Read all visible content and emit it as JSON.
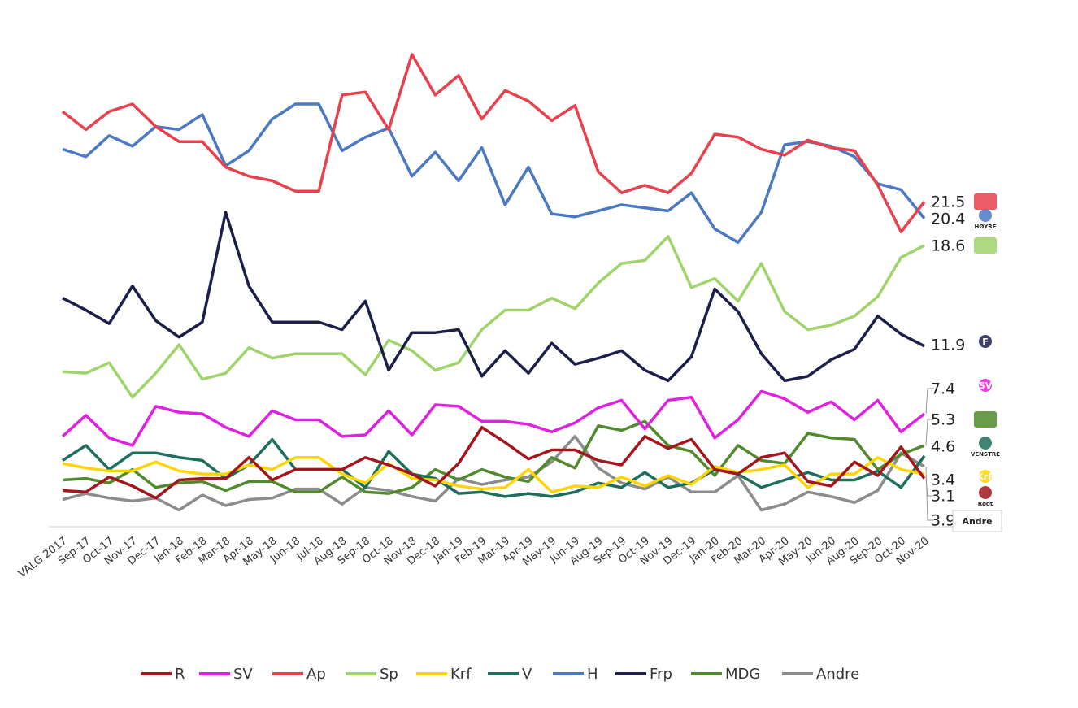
{
  "chart_data": {
    "type": "line",
    "categories": [
      "VALG 2017",
      "Sep-17",
      "Oct-17",
      "Nov-17",
      "Dec-17",
      "Jan-18",
      "Feb-18",
      "Mar-18",
      "Apr-18",
      "May-18",
      "Jun-18",
      "Jul-18",
      "Aug-18",
      "Sep-18",
      "Oct-18",
      "Nov-18",
      "Dec-18",
      "Jan-19",
      "Feb-19",
      "Mar-19",
      "Apr-19",
      "May-19",
      "Jun-19",
      "Aug-19",
      "Sep-19",
      "Oct-19",
      "Nov-19",
      "Dec-19",
      "Jan-20",
      "Feb-20",
      "Mar-20",
      "Apr-20",
      "May-20",
      "Jun-20",
      "Aug-20",
      "Sep-20",
      "Oct-20",
      "Nov-20"
    ],
    "ylim": [
      0,
      34
    ],
    "series": [
      {
        "name": "R",
        "color": "#a3161c",
        "logo": "Rødt",
        "values": [
          2.3,
          2.2,
          3.2,
          2.6,
          1.8,
          3.0,
          3.1,
          3.1,
          4.5,
          3.0,
          3.7,
          3.7,
          3.7,
          4.5,
          4.0,
          3.4,
          2.6,
          4.1,
          6.5,
          5.5,
          4.4,
          5.0,
          5.0,
          4.3,
          4.0,
          5.9,
          5.1,
          5.7,
          3.7,
          3.4,
          4.5,
          4.8,
          2.9,
          2.6,
          4.2,
          3.3,
          5.2,
          3.1
        ]
      },
      {
        "name": "SV",
        "color": "#e020e0",
        "logo": "SV",
        "values": [
          5.9,
          7.3,
          5.8,
          5.3,
          7.9,
          7.5,
          7.4,
          6.5,
          5.9,
          7.6,
          7.0,
          7.0,
          5.9,
          6.0,
          7.6,
          6.0,
          8.0,
          7.9,
          6.9,
          6.9,
          6.7,
          6.2,
          6.8,
          7.8,
          8.3,
          6.4,
          8.3,
          8.5,
          5.8,
          7.0,
          8.9,
          8.4,
          7.5,
          8.2,
          7.0,
          8.3,
          6.2,
          7.4
        ]
      },
      {
        "name": "Ap",
        "color": "#e8404c",
        "values": [
          27.5,
          26.3,
          27.5,
          28.0,
          26.5,
          25.5,
          25.5,
          23.8,
          23.2,
          22.9,
          22.2,
          22.2,
          28.6,
          28.8,
          26.3,
          31.3,
          28.6,
          29.9,
          27.0,
          28.9,
          28.2,
          26.9,
          27.9,
          23.5,
          22.1,
          22.6,
          22.1,
          23.4,
          26.0,
          25.8,
          25.0,
          24.6,
          25.6,
          25.1,
          24.9,
          22.6,
          19.5,
          21.5
        ]
      },
      {
        "name": "Sp",
        "color": "#9fd46b",
        "values": [
          10.2,
          10.1,
          10.8,
          8.5,
          10.1,
          12.0,
          9.7,
          10.1,
          11.8,
          11.1,
          11.4,
          11.4,
          11.4,
          10.0,
          12.3,
          11.6,
          10.3,
          10.8,
          13.0,
          14.3,
          14.3,
          15.1,
          14.4,
          16.1,
          17.4,
          17.6,
          19.2,
          15.8,
          16.4,
          14.9,
          17.4,
          14.2,
          13.0,
          13.3,
          13.9,
          15.2,
          17.8,
          18.6
        ]
      },
      {
        "name": "Krf",
        "color": "#ffd500",
        "logo": "KrF",
        "values": [
          4.1,
          3.8,
          3.6,
          3.6,
          4.2,
          3.6,
          3.4,
          3.4,
          4.0,
          3.7,
          4.5,
          4.5,
          3.4,
          2.8,
          4.1,
          3.1,
          3.0,
          2.6,
          2.4,
          2.5,
          3.7,
          2.2,
          2.6,
          2.5,
          3.2,
          2.6,
          3.3,
          2.7,
          3.9,
          3.5,
          3.7,
          4.0,
          2.5,
          3.4,
          3.4,
          4.5,
          3.7,
          3.4
        ]
      },
      {
        "name": "V",
        "color": "#1e6e5e",
        "logo": "VENSTRE",
        "values": [
          4.3,
          5.3,
          3.7,
          4.8,
          4.8,
          4.5,
          4.3,
          3.1,
          4.0,
          5.7,
          3.7,
          3.7,
          3.7,
          2.5,
          4.9,
          3.4,
          3.1,
          2.1,
          2.2,
          1.9,
          2.1,
          1.9,
          2.2,
          2.8,
          2.5,
          3.5,
          2.5,
          2.8,
          3.7,
          3.4,
          2.5,
          3.0,
          3.5,
          3.0,
          3.0,
          3.6,
          2.5,
          4.6
        ]
      },
      {
        "name": "H",
        "color": "#4a78c2",
        "logo": "HØYRE",
        "values": [
          25.0,
          24.5,
          25.9,
          25.2,
          26.5,
          26.3,
          27.3,
          23.9,
          24.9,
          27.0,
          28.0,
          28.0,
          24.9,
          25.8,
          26.4,
          23.2,
          24.8,
          22.9,
          25.1,
          21.3,
          23.8,
          20.7,
          20.5,
          20.9,
          21.3,
          21.1,
          20.9,
          22.1,
          19.7,
          18.8,
          20.8,
          25.3,
          25.5,
          25.2,
          24.5,
          22.7,
          22.3,
          20.4
        ]
      },
      {
        "name": "Frp",
        "color": "#1c1f4a",
        "logo": "F",
        "values": [
          15.1,
          14.3,
          13.4,
          15.9,
          13.6,
          12.5,
          13.5,
          20.8,
          15.9,
          13.5,
          13.5,
          13.5,
          13.0,
          14.9,
          10.3,
          12.8,
          12.8,
          13.0,
          9.9,
          11.6,
          10.1,
          12.1,
          10.7,
          11.1,
          11.6,
          10.3,
          9.6,
          11.2,
          15.7,
          14.2,
          11.4,
          9.6,
          9.9,
          11.0,
          11.7,
          13.9,
          12.7,
          11.9
        ]
      },
      {
        "name": "MDG",
        "color": "#4f8a2c",
        "values": [
          3.0,
          3.1,
          2.8,
          3.7,
          2.5,
          2.8,
          2.9,
          2.3,
          2.9,
          2.9,
          2.2,
          2.2,
          3.2,
          2.2,
          2.1,
          2.5,
          3.7,
          3.0,
          3.7,
          3.2,
          2.9,
          4.5,
          3.8,
          6.6,
          6.3,
          6.9,
          5.3,
          4.9,
          3.3,
          5.3,
          4.3,
          4.1,
          6.1,
          5.8,
          5.7,
          3.7,
          4.7,
          5.3
        ]
      },
      {
        "name": "Andre",
        "color": "#8c8c8c",
        "logo": "Andre",
        "values": [
          1.7,
          2.1,
          1.8,
          1.6,
          1.8,
          1.0,
          2.0,
          1.3,
          1.7,
          1.8,
          2.4,
          2.4,
          1.4,
          2.5,
          2.3,
          1.9,
          1.6,
          3.1,
          2.7,
          3.0,
          3.2,
          4.2,
          5.9,
          3.8,
          2.8,
          2.4,
          3.2,
          2.2,
          2.2,
          3.3,
          1.0,
          1.4,
          2.2,
          1.9,
          1.5,
          2.3,
          4.8,
          3.9
        ]
      }
    ]
  }
}
